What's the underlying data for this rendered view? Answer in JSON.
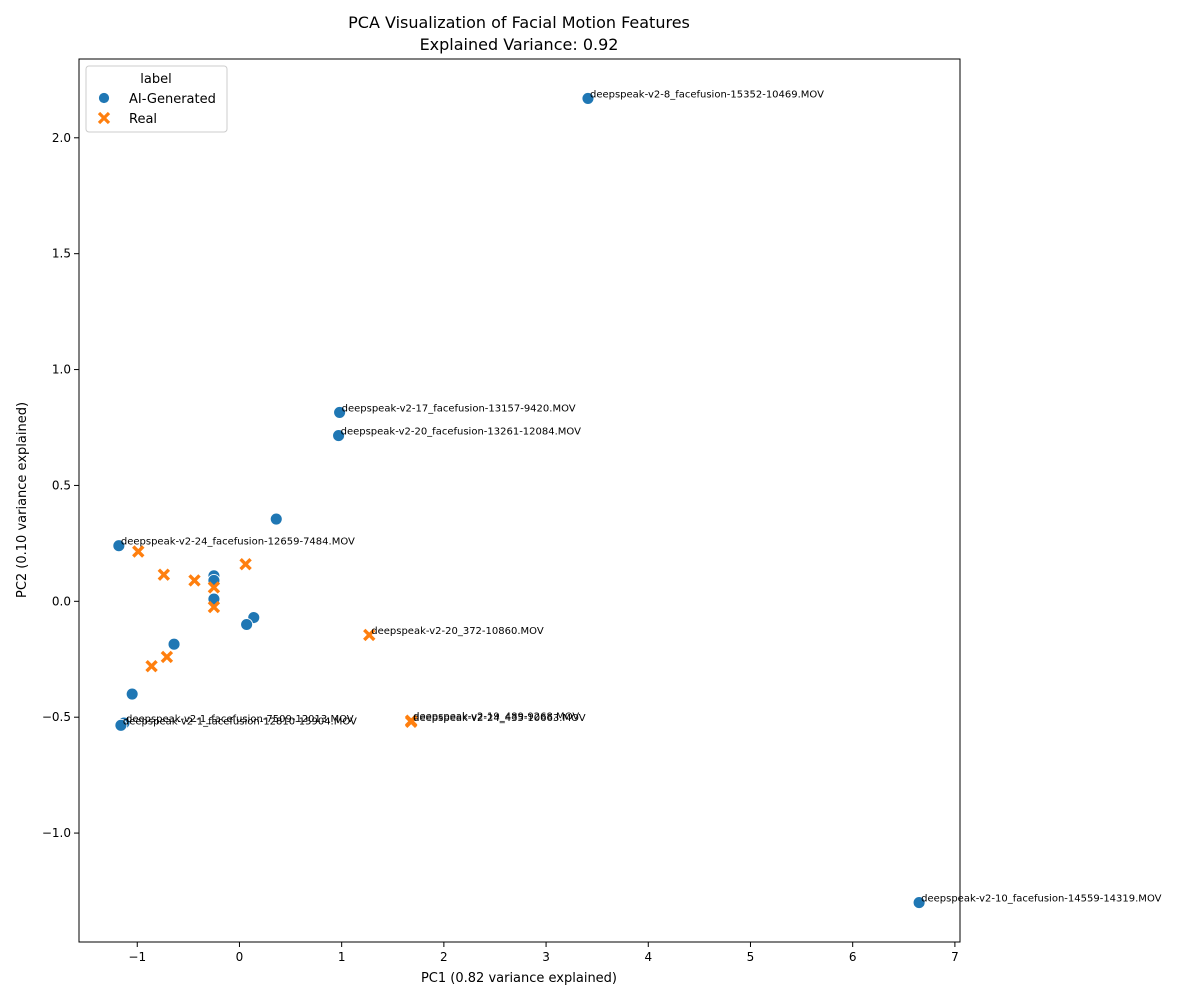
{
  "chart_data": {
    "type": "scatter",
    "title_line1": "PCA Visualization of Facial Motion Features",
    "title_line2": "Explained Variance: 0.92",
    "xlabel": "PC1 (0.82 variance explained)",
    "ylabel": "PC2 (0.10 variance explained)",
    "xlim": [
      -1.57,
      7.05
    ],
    "ylim": [
      -1.47,
      2.34
    ],
    "xticks": [
      -1,
      0,
      1,
      2,
      3,
      4,
      5,
      6,
      7
    ],
    "yticks": [
      -1.0,
      -0.5,
      0.0,
      0.5,
      1.0,
      1.5,
      2.0
    ],
    "ytick_labels": [
      "−1.0",
      "−0.5",
      "0.0",
      "0.5",
      "1.0",
      "1.5",
      "2.0"
    ],
    "xtick_labels": [
      "−1",
      "0",
      "1",
      "2",
      "3",
      "4",
      "5",
      "6",
      "7"
    ],
    "legend": {
      "title": "label",
      "position": "upper-left",
      "entries": [
        {
          "name": "AI-Generated",
          "marker": "circle",
          "color": "#1f77b4"
        },
        {
          "name": "Real",
          "marker": "x",
          "color": "#ff7f0e"
        }
      ]
    },
    "series": [
      {
        "name": "AI-Generated",
        "marker": "circle",
        "color": "#1f77b4",
        "points": [
          {
            "x": 3.41,
            "y": 2.17,
            "label": "deepspeak-v2-8_facefusion-15352-10469.MOV"
          },
          {
            "x": 0.98,
            "y": 0.815,
            "label": "deepspeak-v2-17_facefusion-13157-9420.MOV"
          },
          {
            "x": 0.97,
            "y": 0.715,
            "label": "deepspeak-v2-20_facefusion-13261-12084.MOV"
          },
          {
            "x": 0.36,
            "y": 0.355,
            "label": ""
          },
          {
            "x": -1.18,
            "y": 0.24,
            "label": "deepspeak-v2-24_facefusion-12659-7484.MOV"
          },
          {
            "x": -0.25,
            "y": 0.11,
            "label": ""
          },
          {
            "x": -0.25,
            "y": 0.09,
            "label": ""
          },
          {
            "x": -0.25,
            "y": 0.01,
            "label": ""
          },
          {
            "x": 0.14,
            "y": -0.07,
            "label": ""
          },
          {
            "x": 0.07,
            "y": -0.1,
            "label": ""
          },
          {
            "x": -0.64,
            "y": -0.185,
            "label": ""
          },
          {
            "x": -1.05,
            "y": -0.4,
            "label": ""
          },
          {
            "x": -1.13,
            "y": -0.525,
            "label": "deepspeak-v2-1_facefusion-7509-12013.MOV"
          },
          {
            "x": -1.16,
            "y": -0.535,
            "label": "deepspeak-v2-1_facefusion-12810-15904.MOV"
          },
          {
            "x": 6.65,
            "y": -1.3,
            "label": "deepspeak-v2-10_facefusion-14559-14319.MOV"
          }
        ]
      },
      {
        "name": "Real",
        "marker": "x",
        "color": "#ff7f0e",
        "points": [
          {
            "x": -0.99,
            "y": 0.215,
            "label": ""
          },
          {
            "x": -0.74,
            "y": 0.115,
            "label": ""
          },
          {
            "x": -0.44,
            "y": 0.09,
            "label": ""
          },
          {
            "x": 0.06,
            "y": 0.16,
            "label": ""
          },
          {
            "x": -0.25,
            "y": 0.06,
            "label": ""
          },
          {
            "x": -0.25,
            "y": -0.025,
            "label": ""
          },
          {
            "x": 1.27,
            "y": -0.145,
            "label": "deepspeak-v2-20_372-10860.MOV"
          },
          {
            "x": -0.71,
            "y": -0.24,
            "label": ""
          },
          {
            "x": -0.86,
            "y": -0.28,
            "label": ""
          },
          {
            "x": 1.68,
            "y": -0.515,
            "label": "deepspeak-v2-19_489-9268.MOV"
          },
          {
            "x": 1.68,
            "y": -0.52,
            "label": "deepspeak-v2-24_435-10663.MOV"
          }
        ]
      }
    ]
  }
}
